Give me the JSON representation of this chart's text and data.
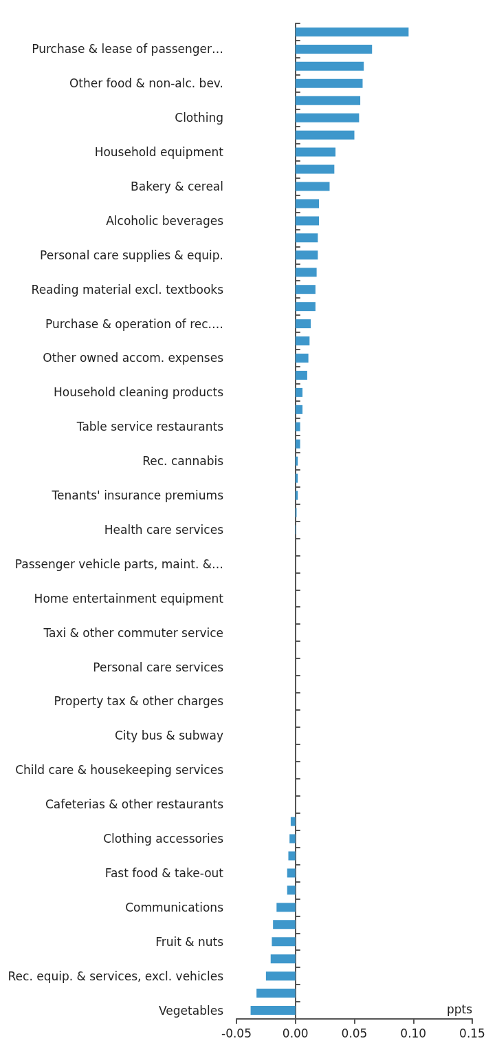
{
  "chart_data": {
    "type": "bar",
    "orientation": "horizontal",
    "xlabel": "ppts",
    "xlim": [
      -0.05,
      0.15
    ],
    "xticks": [
      -0.05,
      {
        "value": 0,
        "label": "0.00"
      },
      0.05,
      {
        "value": 0.1,
        "label": "0.10"
      },
      {
        "value": 0.15,
        "label": "0.15"
      }
    ],
    "categories": [
      null,
      "Purchase & lease of passenger…",
      null,
      "Other food & non-alc. bev.",
      null,
      "Clothing",
      null,
      "Household equipment",
      null,
      "Bakery & cereal",
      null,
      "Alcoholic beverages",
      null,
      "Personal care supplies & equip.",
      null,
      "Reading material excl. textbooks",
      null,
      "Purchase & operation of rec.…",
      null,
      "Other owned accom. expenses",
      null,
      "Household cleaning products",
      null,
      "Table service restaurants",
      null,
      "Rec. cannabis",
      null,
      "Tenants' insurance premiums",
      null,
      "Health care services",
      null,
      "Passenger vehicle parts, maint. &…",
      null,
      "Home entertainment equipment",
      null,
      "Taxi & other commuter service",
      null,
      "Personal care services",
      null,
      "Property tax & other charges",
      null,
      "City bus & subway",
      null,
      "Child care & housekeeping services",
      null,
      "Cafeterias & other restaurants",
      null,
      "Clothing accessories",
      null,
      "Fast food & take-out",
      null,
      "Communications",
      null,
      "Fruit & nuts",
      null,
      "Rec. equip. & services, excl. vehicles",
      null,
      "Vegetables"
    ],
    "values": [
      0.096,
      0.065,
      0.058,
      0.057,
      0.055,
      0.054,
      0.05,
      0.034,
      0.033,
      0.029,
      0.02,
      0.02,
      0.019,
      0.019,
      0.018,
      0.017,
      0.017,
      0.013,
      0.012,
      0.011,
      0.01,
      0.006,
      0.006,
      0.004,
      0.004,
      0.002,
      0.002,
      0.002,
      0.001,
      0.0005,
      0,
      0,
      0,
      0,
      0,
      0,
      0,
      0,
      0,
      0,
      0,
      0,
      0,
      0,
      0,
      0,
      -0.004,
      -0.005,
      -0.006,
      -0.007,
      -0.007,
      -0.016,
      -0.019,
      -0.02,
      -0.021,
      -0.025,
      -0.033,
      -0.038
    ],
    "color": "#3e97cb"
  }
}
